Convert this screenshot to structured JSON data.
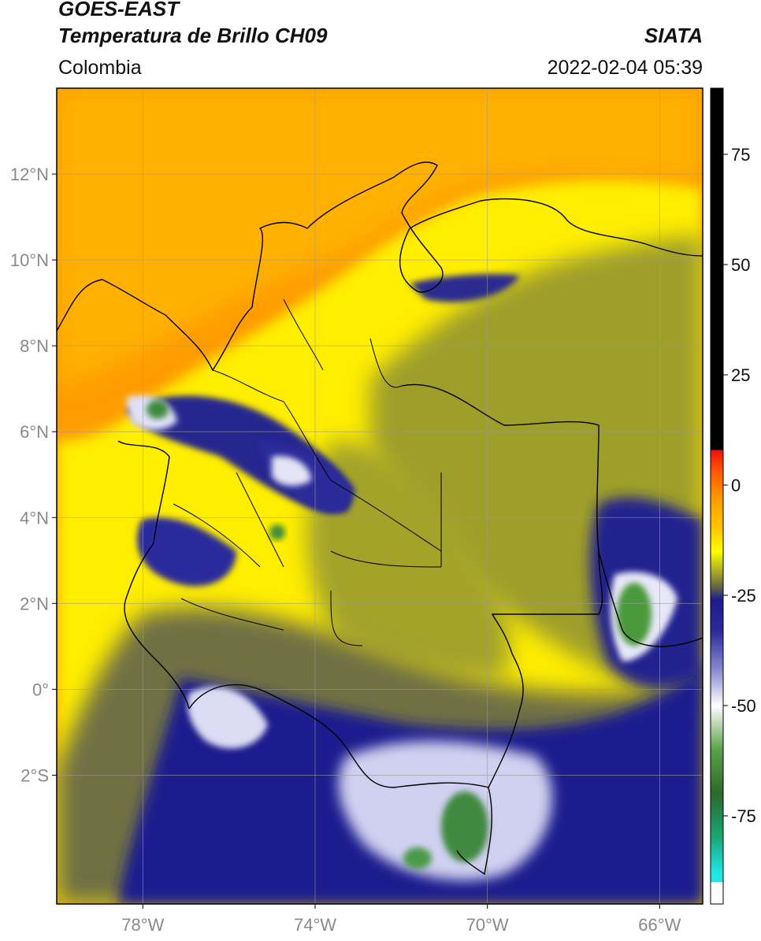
{
  "header": {
    "satellite": "GOES-EAST",
    "product": "Temperatura de Brillo CH09",
    "agency": "SIATA",
    "region": "Colombia",
    "datetime": "2022-02-04 05:39"
  },
  "map": {
    "lon_range": [
      -80,
      -65
    ],
    "lat_range": [
      -5,
      14
    ],
    "lon_ticks": [
      {
        "value": -78,
        "label": "78°W"
      },
      {
        "value": -74,
        "label": "74°W"
      },
      {
        "value": -70,
        "label": "70°W"
      },
      {
        "value": -66,
        "label": "66°W"
      }
    ],
    "lat_ticks": [
      {
        "value": 12,
        "label": "12°N"
      },
      {
        "value": 10,
        "label": "10°N"
      },
      {
        "value": 8,
        "label": "8°N"
      },
      {
        "value": 6,
        "label": "6°N"
      },
      {
        "value": 4,
        "label": "4°N"
      },
      {
        "value": 2,
        "label": "2°N"
      },
      {
        "value": 0,
        "label": "0°"
      },
      {
        "value": -2,
        "label": "2°S"
      }
    ],
    "grid": true
  },
  "colorbar": {
    "range": [
      -95,
      90
    ],
    "ticks": [
      {
        "value": 75,
        "label": "75"
      },
      {
        "value": 50,
        "label": "50"
      },
      {
        "value": 25,
        "label": "25"
      },
      {
        "value": 0,
        "label": "0"
      },
      {
        "value": -25,
        "label": "-25"
      },
      {
        "value": -50,
        "label": "-50"
      },
      {
        "value": -75,
        "label": "-75"
      }
    ],
    "stops": [
      {
        "value": 90,
        "color": "#000000"
      },
      {
        "value": 8,
        "color": "#000000"
      },
      {
        "value": 7.9,
        "color": "#ee1010"
      },
      {
        "value": 3,
        "color": "#ff5a00"
      },
      {
        "value": -3,
        "color": "#ff9a00"
      },
      {
        "value": -10,
        "color": "#ffc800"
      },
      {
        "value": -15,
        "color": "#ffff00"
      },
      {
        "value": -19,
        "color": "#b5b522"
      },
      {
        "value": -23,
        "color": "#676743"
      },
      {
        "value": -26,
        "color": "#1c1c8c"
      },
      {
        "value": -33,
        "color": "#2a2a9a"
      },
      {
        "value": -42,
        "color": "#8a8ad0"
      },
      {
        "value": -50,
        "color": "#ffffff"
      },
      {
        "value": -60,
        "color": "#5aa24a"
      },
      {
        "value": -70,
        "color": "#2c6a2c"
      },
      {
        "value": -80,
        "color": "#18a878"
      },
      {
        "value": -88,
        "color": "#20e6e6"
      },
      {
        "value": -90,
        "color": "#20e6e6"
      },
      {
        "value": -90.1,
        "color": "#ffffff"
      },
      {
        "value": -95,
        "color": "#ffffff"
      }
    ]
  },
  "colors": {
    "sea_warm": "#ff9a00",
    "land_warm": "#ffff00",
    "mid_cloud": "#a8a826",
    "cold_cloud": "#1e1e8e",
    "very_cold": "#ffffff",
    "coldest": "#3c8a3c",
    "coastline": "#000000",
    "gridline": "#9a9a9a"
  }
}
